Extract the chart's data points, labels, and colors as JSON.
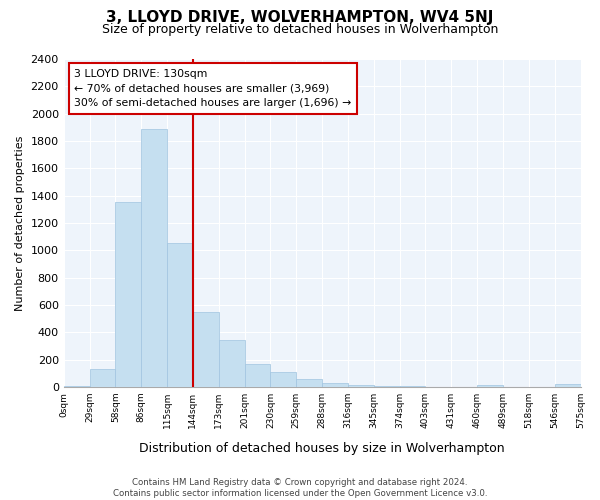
{
  "title": "3, LLOYD DRIVE, WOLVERHAMPTON, WV4 5NJ",
  "subtitle": "Size of property relative to detached houses in Wolverhampton",
  "xlabel": "Distribution of detached houses by size in Wolverhampton",
  "ylabel": "Number of detached properties",
  "bar_values": [
    10,
    130,
    1350,
    1890,
    1050,
    550,
    340,
    170,
    110,
    60,
    25,
    15,
    5,
    5,
    0,
    0,
    15,
    0,
    0,
    20
  ],
  "bin_labels": [
    "0sqm",
    "29sqm",
    "58sqm",
    "86sqm",
    "115sqm",
    "144sqm",
    "173sqm",
    "201sqm",
    "230sqm",
    "259sqm",
    "288sqm",
    "316sqm",
    "345sqm",
    "374sqm",
    "403sqm",
    "431sqm",
    "460sqm",
    "489sqm",
    "518sqm",
    "546sqm",
    "575sqm"
  ],
  "bar_color": "#c5dff0",
  "bar_edge_color": "#a0c4e0",
  "vline_color": "#cc0000",
  "vline_x": 5,
  "annotation_text": "3 LLOYD DRIVE: 130sqm\n← 70% of detached houses are smaller (3,969)\n30% of semi-detached houses are larger (1,696) →",
  "annotation_box_color": "#ffffff",
  "annotation_box_edge": "#cc0000",
  "ylim": [
    0,
    2400
  ],
  "yticks": [
    0,
    200,
    400,
    600,
    800,
    1000,
    1200,
    1400,
    1600,
    1800,
    2000,
    2200,
    2400
  ],
  "footer_line1": "Contains HM Land Registry data © Crown copyright and database right 2024.",
  "footer_line2": "Contains public sector information licensed under the Open Government Licence v3.0.",
  "bg_color": "#ffffff",
  "plot_bg_color": "#eef4fb",
  "grid_color": "#ffffff"
}
